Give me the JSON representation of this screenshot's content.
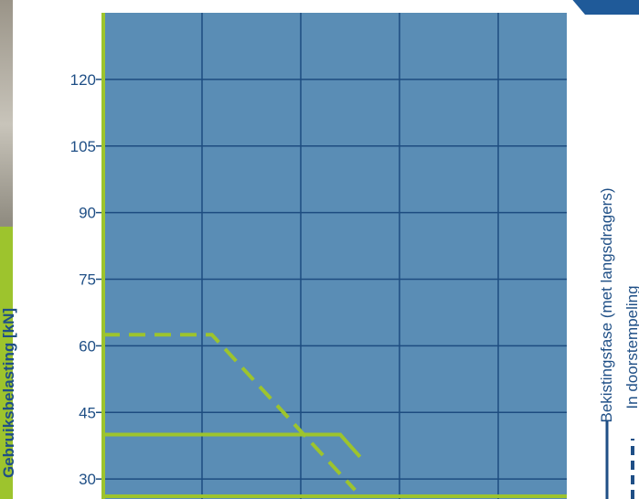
{
  "chart_data": {
    "type": "line",
    "ylabel": "Gebruiksbelasting [kN]",
    "xlabel": "",
    "yticks": [
      30,
      45,
      60,
      75,
      90,
      105,
      120
    ],
    "ylim": [
      25.5,
      135
    ],
    "xlim": [
      0,
      6
    ],
    "grid": true,
    "series": [
      {
        "name": "Bekistingsfase (met langsdragers)",
        "style": "solid",
        "color": "#9dc42d",
        "x": [
          0,
          2.4,
          2.6
        ],
        "y": [
          40,
          40,
          35
        ]
      },
      {
        "name": "In doorstempeling",
        "style": "dashed",
        "color": "#9dc42d",
        "x": [
          0,
          1.1,
          2.55
        ],
        "y": [
          62.5,
          62.5,
          27.5
        ]
      }
    ]
  },
  "colors": {
    "plot_background": "#5a8db5",
    "grid": "#1d4c80",
    "axis": "#9dc42d",
    "text": "#1f4f86"
  }
}
